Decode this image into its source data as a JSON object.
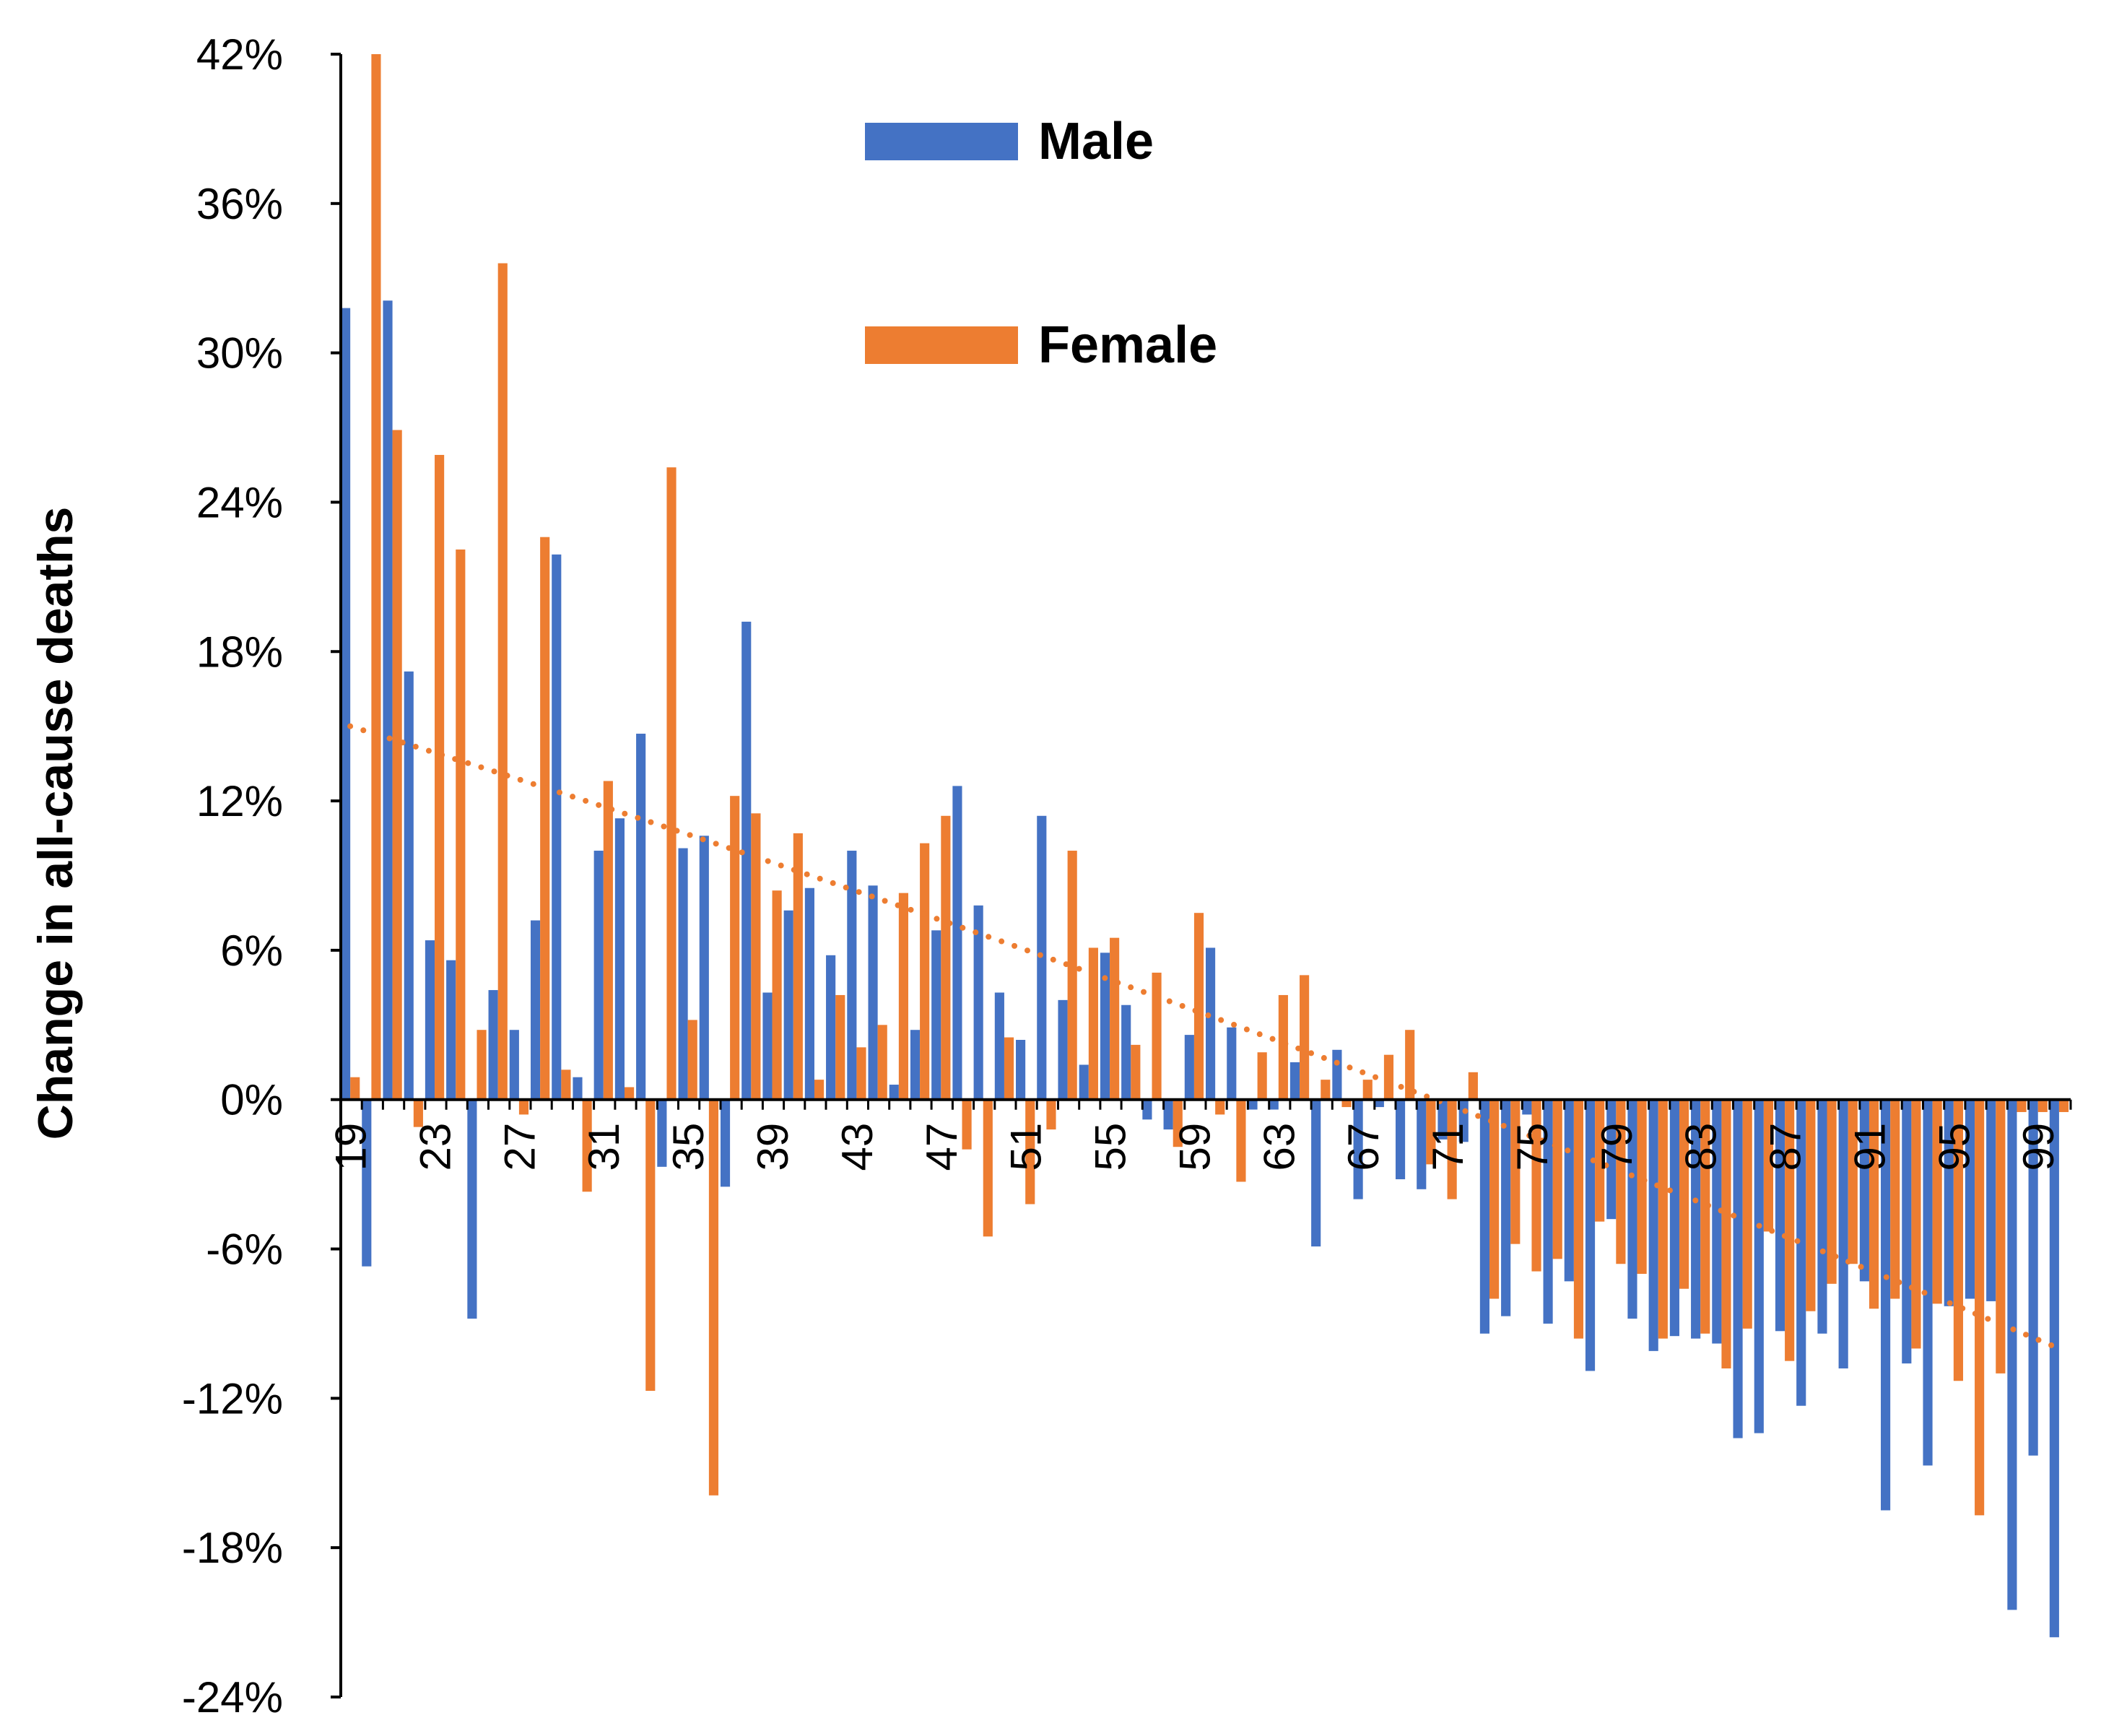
{
  "chart_data": {
    "type": "bar",
    "title": "",
    "xlabel": "",
    "ylabel": "Change in all-cause deaths",
    "ylim": [
      -24,
      42
    ],
    "yticks": [
      "42%",
      "36%",
      "30%",
      "24%",
      "18%",
      "12%",
      "6%",
      "0%",
      "-6%",
      "-12%",
      "-18%",
      "-24%"
    ],
    "ytick_values": [
      42,
      36,
      30,
      24,
      18,
      12,
      6,
      0,
      -6,
      -12,
      -18,
      -24
    ],
    "categories": [
      19,
      20,
      21,
      22,
      23,
      24,
      25,
      26,
      27,
      28,
      29,
      30,
      31,
      32,
      33,
      34,
      35,
      36,
      37,
      38,
      39,
      40,
      41,
      42,
      43,
      44,
      45,
      46,
      47,
      48,
      49,
      50,
      51,
      52,
      53,
      54,
      55,
      56,
      57,
      58,
      59,
      60,
      61,
      62,
      63,
      64,
      65,
      66,
      67,
      68,
      69,
      70,
      71,
      72,
      73,
      74,
      75,
      76,
      77,
      78,
      79,
      80,
      81,
      82,
      83,
      84,
      85,
      86,
      87,
      88,
      89,
      90,
      91,
      92,
      93,
      94,
      95,
      96,
      97,
      98,
      99,
      100
    ],
    "xtick_labels": [
      "19",
      "23",
      "27",
      "31",
      "35",
      "39",
      "43",
      "47",
      "51",
      "55",
      "59",
      "63",
      "67",
      "71",
      "75",
      "79",
      "83",
      "87",
      "91",
      "95",
      "99"
    ],
    "series": [
      {
        "name": "Male",
        "color": "#4472C4",
        "values": [
          31.8,
          -6.7,
          32.1,
          17.2,
          6.4,
          5.6,
          -8.8,
          4.4,
          2.8,
          7.2,
          21.9,
          0.9,
          10.0,
          11.3,
          14.7,
          -2.7,
          10.1,
          10.6,
          -3.5,
          19.2,
          4.3,
          7.6,
          8.5,
          5.8,
          10.0,
          8.6,
          0.6,
          2.8,
          6.8,
          12.6,
          7.8,
          4.3,
          2.4,
          11.4,
          4.0,
          1.4,
          5.9,
          3.8,
          -0.8,
          -1.2,
          2.6,
          6.1,
          2.9,
          -0.4,
          -0.4,
          1.5,
          -5.9,
          2.0,
          -4.0,
          -0.3,
          -3.2,
          -3.6,
          -1.6,
          -1.7,
          -9.4,
          -8.7,
          -0.6,
          -9.0,
          -7.3,
          -10.9,
          -4.8,
          -8.8,
          -10.1,
          -9.5,
          -9.6,
          -9.8,
          -13.6,
          -13.4,
          -9.3,
          -12.3,
          -9.4,
          -10.8,
          -7.3,
          -16.5,
          -10.6,
          -14.7,
          -8.3,
          -8.0,
          -8.1,
          -20.5,
          -14.3,
          -21.6
        ],
        "trendline": false
      },
      {
        "name": "Female",
        "color": "#ED7D31",
        "values": [
          0.9,
          42.0,
          26.9,
          -1.1,
          25.9,
          22.1,
          2.8,
          33.6,
          -0.6,
          22.6,
          1.2,
          -3.7,
          12.8,
          0.5,
          -11.7,
          25.4,
          3.2,
          -15.9,
          12.2,
          11.5,
          8.4,
          10.7,
          0.8,
          4.2,
          2.1,
          3.0,
          8.3,
          10.3,
          11.4,
          -2.0,
          -5.5,
          2.5,
          -4.2,
          -1.2,
          10.0,
          6.1,
          6.5,
          2.2,
          5.1,
          -1.9,
          7.5,
          -0.6,
          -3.3,
          1.9,
          4.2,
          5.0,
          0.8,
          -0.3,
          0.8,
          1.8,
          2.8,
          -2.6,
          -4.0,
          1.1,
          -8.0,
          -5.8,
          -6.9,
          -6.4,
          -9.6,
          -4.9,
          -6.6,
          -7.0,
          -9.6,
          -7.6,
          -9.4,
          -10.8,
          -9.2,
          -5.3,
          -10.5,
          -8.5,
          -7.4,
          -6.6,
          -8.4,
          -8.0,
          -10.0,
          -8.2,
          -11.3,
          -16.7,
          -11.0,
          -0.5,
          -0.5,
          -0.5
        ],
        "trendline": true,
        "trendline_start": 15.0,
        "trendline_end": -10.0
      }
    ],
    "legend": {
      "position": "top-center",
      "entries": [
        {
          "label": "Male",
          "color": "#4472C4"
        },
        {
          "label": "Female",
          "color": "#ED7D31"
        }
      ]
    },
    "grid": false
  }
}
